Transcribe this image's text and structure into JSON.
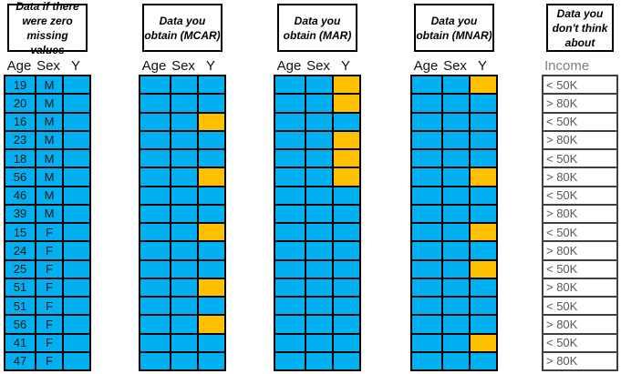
{
  "colors": {
    "cell_blue": "#00B0F0",
    "cell_orange": "#FFC000",
    "grid_border": "#000000",
    "income_border": "#404040",
    "income_text": "#595959",
    "income_header_text": "#808080"
  },
  "columns": {
    "age": "Age",
    "sex": "Sex",
    "y": "Y"
  },
  "panels": {
    "complete": {
      "id": "complete",
      "title": "Data if there\nwere zero\nmissing values",
      "show_values": true,
      "missing_rows": []
    },
    "mcar": {
      "id": "mcar",
      "title": "Data you\nobtain (MCAR)",
      "show_values": false,
      "missing_rows": [
        3,
        6,
        9,
        12,
        14
      ]
    },
    "mar": {
      "id": "mar",
      "title": "Data you\nobtain (MAR)",
      "show_values": false,
      "missing_rows": [
        1,
        2,
        4,
        5,
        6
      ]
    },
    "mnar": {
      "id": "mnar",
      "title": "Data you\nobtain (MNAR)",
      "show_values": false,
      "missing_rows": [
        1,
        6,
        9,
        11,
        15
      ]
    },
    "income": {
      "id": "income",
      "title": "Data you\ndon't think\nabout",
      "header": "Income"
    }
  },
  "rows": [
    {
      "age": "19",
      "sex": "M",
      "income": "< 50K"
    },
    {
      "age": "20",
      "sex": "M",
      "income": "> 80K"
    },
    {
      "age": "16",
      "sex": "M",
      "income": "< 50K"
    },
    {
      "age": "23",
      "sex": "M",
      "income": "> 80K"
    },
    {
      "age": "18",
      "sex": "M",
      "income": "< 50K"
    },
    {
      "age": "56",
      "sex": "M",
      "income": "> 80K"
    },
    {
      "age": "46",
      "sex": "M",
      "income": "< 50K"
    },
    {
      "age": "39",
      "sex": "M",
      "income": "> 80K"
    },
    {
      "age": "15",
      "sex": "F",
      "income": "< 50K"
    },
    {
      "age": "24",
      "sex": "F",
      "income": "> 80K"
    },
    {
      "age": "25",
      "sex": "F",
      "income": "< 50K"
    },
    {
      "age": "51",
      "sex": "F",
      "income": "> 80K"
    },
    {
      "age": "51",
      "sex": "F",
      "income": "< 50K"
    },
    {
      "age": "56",
      "sex": "F",
      "income": "> 80K"
    },
    {
      "age": "41",
      "sex": "F",
      "income": "< 50K"
    },
    {
      "age": "47",
      "sex": "F",
      "income": "> 80K"
    }
  ]
}
